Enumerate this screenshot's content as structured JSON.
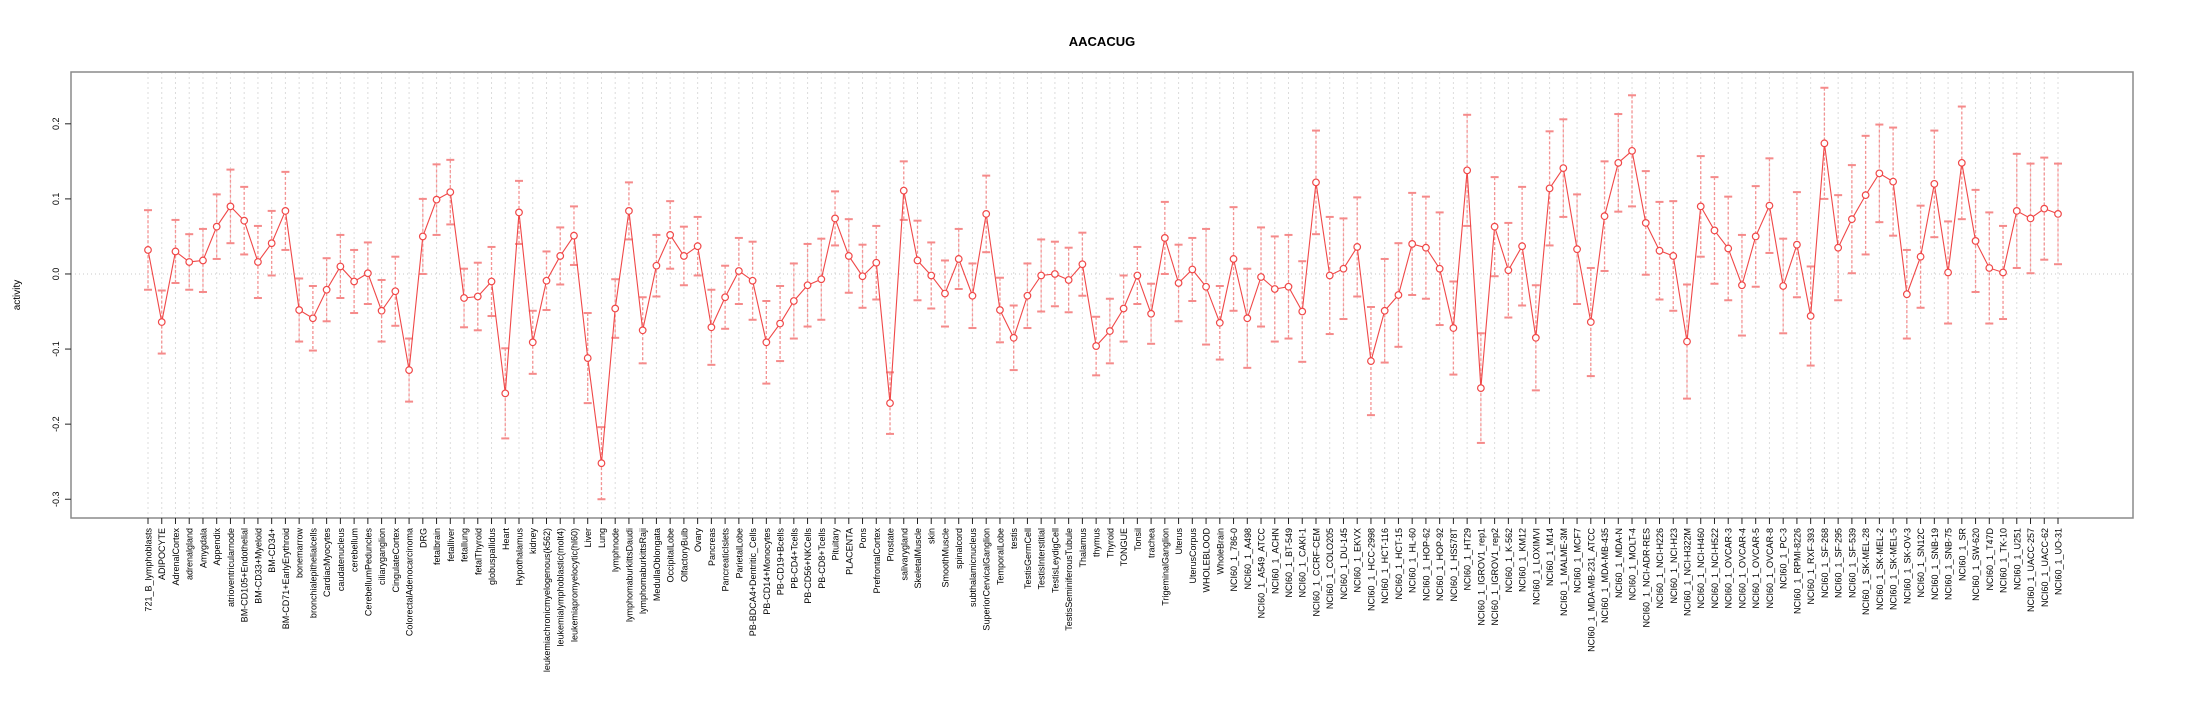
{
  "title": "AACACUG",
  "chart_data": {
    "type": "scatter",
    "subtype": "points-with-error-bars",
    "title": "AACACUG",
    "xlabel": "",
    "ylabel": "activity",
    "ylim": [
      -0.325,
      0.269
    ],
    "ytick_labels": [
      "0.2",
      "0.1",
      "0.0",
      "-0.1",
      "-0.2",
      "-0.3"
    ],
    "ytick_values": [
      0.2,
      0.1,
      0.0,
      -0.1,
      -0.2,
      -0.3
    ],
    "grid": "vertical-dashed-per-category",
    "zero_reference_line": true,
    "legend_position": "none",
    "colors": {
      "point": "#f04848",
      "connector_line": "#f04848",
      "error_bar_line": "#f58a8a",
      "error_bar_cap": "#f58a8a",
      "gridline": "#dcdcdc",
      "zero_line": "#c8c8c8",
      "frame": "#8a8a8a",
      "text": "#000000"
    },
    "points": [
      {
        "label": "721_B_lymphoblasts",
        "value": 0.032,
        "err": 0.053
      },
      {
        "label": "ADIPOCYTE",
        "value": -0.064,
        "err": 0.042
      },
      {
        "label": "AdrenalCortex",
        "value": 0.03,
        "err": 0.042
      },
      {
        "label": "adrenalgland",
        "value": 0.016,
        "err": 0.037
      },
      {
        "label": "Amygdala",
        "value": 0.018,
        "err": 0.042
      },
      {
        "label": "Appendix",
        "value": 0.063,
        "err": 0.043
      },
      {
        "label": "atrioventricularnode",
        "value": 0.09,
        "err": 0.049
      },
      {
        "label": "BM-CD105+Endothelial",
        "value": 0.071,
        "err": 0.045
      },
      {
        "label": "BM-CD33+Myeloid",
        "value": 0.016,
        "err": 0.048
      },
      {
        "label": "BM-CD34+",
        "value": 0.041,
        "err": 0.043
      },
      {
        "label": "BM-CD71+EarlyErythroid",
        "value": 0.084,
        "err": 0.052
      },
      {
        "label": "bonemarrow",
        "value": -0.048,
        "err": 0.042
      },
      {
        "label": "bronchialepithelialcells",
        "value": -0.059,
        "err": 0.043
      },
      {
        "label": "CardiacMyocytes",
        "value": -0.021,
        "err": 0.042
      },
      {
        "label": "caudatenucleus",
        "value": 0.01,
        "err": 0.042
      },
      {
        "label": "cerebellum",
        "value": -0.01,
        "err": 0.042
      },
      {
        "label": "CerebellumPeduncles",
        "value": 0.001,
        "err": 0.041
      },
      {
        "label": "ciliaryganglion",
        "value": -0.049,
        "err": 0.041
      },
      {
        "label": "CingulateCortex",
        "value": -0.023,
        "err": 0.046
      },
      {
        "label": "ColorectalAdenocarcinoma",
        "value": -0.128,
        "err": 0.042
      },
      {
        "label": "DRG",
        "value": 0.05,
        "err": 0.05
      },
      {
        "label": "fetalbrain",
        "value": 0.099,
        "err": 0.047
      },
      {
        "label": "fetalliver",
        "value": 0.109,
        "err": 0.043
      },
      {
        "label": "fetallung",
        "value": -0.032,
        "err": 0.039
      },
      {
        "label": "fetalThyroid",
        "value": -0.03,
        "err": 0.045
      },
      {
        "label": "globuspallidus",
        "value": -0.01,
        "err": 0.046
      },
      {
        "label": "Heart",
        "value": -0.159,
        "err": 0.06
      },
      {
        "label": "Hypothalamus",
        "value": 0.082,
        "err": 0.042
      },
      {
        "label": "kidney",
        "value": -0.091,
        "err": 0.042
      },
      {
        "label": "leukemiachronicmyelogenous(k562)",
        "value": -0.009,
        "err": 0.039
      },
      {
        "label": "leukemialymphoblastic(molt4)",
        "value": 0.024,
        "err": 0.038
      },
      {
        "label": "leukemiapromyelocytic(hl60)",
        "value": 0.051,
        "err": 0.039
      },
      {
        "label": "Liver",
        "value": -0.112,
        "err": 0.06
      },
      {
        "label": "Lung",
        "value": -0.252,
        "err": 0.048
      },
      {
        "label": "lymphnode",
        "value": -0.046,
        "err": 0.039
      },
      {
        "label": "lymphomaburkittsDaudi",
        "value": 0.084,
        "err": 0.038
      },
      {
        "label": "lymphomaburkittsRaji",
        "value": -0.075,
        "err": 0.044
      },
      {
        "label": "MedullaOblongata",
        "value": 0.011,
        "err": 0.041
      },
      {
        "label": "OccipitalLobe",
        "value": 0.052,
        "err": 0.045
      },
      {
        "label": "OlfactoryBulb",
        "value": 0.024,
        "err": 0.039
      },
      {
        "label": "Ovary",
        "value": 0.037,
        "err": 0.039
      },
      {
        "label": "Pancreas",
        "value": -0.071,
        "err": 0.05
      },
      {
        "label": "PancreaticIslets",
        "value": -0.031,
        "err": 0.042
      },
      {
        "label": "ParietalLobe",
        "value": 0.004,
        "err": 0.044
      },
      {
        "label": "PB-BDCA4+Dentritic_Cells",
        "value": -0.009,
        "err": 0.052
      },
      {
        "label": "PB-CD14+Monocytes",
        "value": -0.091,
        "err": 0.055
      },
      {
        "label": "PB-CD19+Bcells",
        "value": -0.066,
        "err": 0.05
      },
      {
        "label": "PB-CD4+Tcells",
        "value": -0.036,
        "err": 0.05
      },
      {
        "label": "PB-CD56+NKCells",
        "value": -0.015,
        "err": 0.055
      },
      {
        "label": "PB-CD8+Tcells",
        "value": -0.007,
        "err": 0.054
      },
      {
        "label": "Pituitary",
        "value": 0.074,
        "err": 0.036
      },
      {
        "label": "PLACENTA",
        "value": 0.024,
        "err": 0.049
      },
      {
        "label": "Pons",
        "value": -0.003,
        "err": 0.042
      },
      {
        "label": "PrefrontalCortex",
        "value": 0.015,
        "err": 0.049
      },
      {
        "label": "Prostate",
        "value": -0.172,
        "err": 0.041
      },
      {
        "label": "salivarygland",
        "value": 0.111,
        "err": 0.039
      },
      {
        "label": "SkeletalMuscle",
        "value": 0.018,
        "err": 0.053
      },
      {
        "label": "skin",
        "value": -0.002,
        "err": 0.044
      },
      {
        "label": "SmoothMuscle",
        "value": -0.026,
        "err": 0.044
      },
      {
        "label": "spinalcord",
        "value": 0.02,
        "err": 0.04
      },
      {
        "label": "subthalamicnucleus",
        "value": -0.029,
        "err": 0.043
      },
      {
        "label": "SuperiorCervicalGanglion",
        "value": 0.08,
        "err": 0.051
      },
      {
        "label": "TemporalLobe",
        "value": -0.048,
        "err": 0.043
      },
      {
        "label": "testis",
        "value": -0.085,
        "err": 0.043
      },
      {
        "label": "TestisGermCell",
        "value": -0.029,
        "err": 0.043
      },
      {
        "label": "TestisInterstitial",
        "value": -0.002,
        "err": 0.048
      },
      {
        "label": "TestisLeydigCell",
        "value": 0.0,
        "err": 0.043
      },
      {
        "label": "TestisSeminiferousTubule",
        "value": -0.008,
        "err": 0.043
      },
      {
        "label": "Thalamus",
        "value": 0.013,
        "err": 0.042
      },
      {
        "label": "thymus",
        "value": -0.096,
        "err": 0.039
      },
      {
        "label": "Thyroid",
        "value": -0.076,
        "err": 0.043
      },
      {
        "label": "TONGUE",
        "value": -0.046,
        "err": 0.044
      },
      {
        "label": "Tonsil",
        "value": -0.002,
        "err": 0.038
      },
      {
        "label": "trachea",
        "value": -0.053,
        "err": 0.04
      },
      {
        "label": "TrigeminalGanglion",
        "value": 0.048,
        "err": 0.048
      },
      {
        "label": "Uterus",
        "value": -0.012,
        "err": 0.051
      },
      {
        "label": "UterusCorpus",
        "value": 0.006,
        "err": 0.042
      },
      {
        "label": "WHOLEBLOOD",
        "value": -0.017,
        "err": 0.077
      },
      {
        "label": "WholeBrain",
        "value": -0.065,
        "err": 0.049
      },
      {
        "label": "NCI60_1_786-0",
        "value": 0.02,
        "err": 0.069
      },
      {
        "label": "NCI60_1_A498",
        "value": -0.059,
        "err": 0.066
      },
      {
        "label": "NCI60_1_A549_ATCC",
        "value": -0.004,
        "err": 0.066
      },
      {
        "label": "NCI60_1_ACHN",
        "value": -0.02,
        "err": 0.07
      },
      {
        "label": "NCI60_1_BT-549",
        "value": -0.017,
        "err": 0.069
      },
      {
        "label": "NCI60_1_CAKI-1",
        "value": -0.05,
        "err": 0.067
      },
      {
        "label": "NCI60_1_CCRF-CEM",
        "value": 0.122,
        "err": 0.069
      },
      {
        "label": "NCI60_1_COLO205",
        "value": -0.002,
        "err": 0.078
      },
      {
        "label": "NCI60_1_DU-145",
        "value": 0.007,
        "err": 0.067
      },
      {
        "label": "NCI60_1_EKVX",
        "value": 0.036,
        "err": 0.066
      },
      {
        "label": "NCI60_1_HCC-2998",
        "value": -0.116,
        "err": 0.072
      },
      {
        "label": "NCI60_1_HCT-116",
        "value": -0.049,
        "err": 0.069
      },
      {
        "label": "NCI60_1_HCT-15",
        "value": -0.028,
        "err": 0.069
      },
      {
        "label": "NCI60_1_HL-60",
        "value": 0.04,
        "err": 0.068
      },
      {
        "label": "NCI60_1_HOP-62",
        "value": 0.035,
        "err": 0.068
      },
      {
        "label": "NCI60_1_HOP-92",
        "value": 0.007,
        "err": 0.075
      },
      {
        "label": "NCI60_1_HS578T",
        "value": -0.072,
        "err": 0.062
      },
      {
        "label": "NCI60_1_HT29",
        "value": 0.138,
        "err": 0.074
      },
      {
        "label": "NCI60_1_IGROV1_rep1",
        "value": -0.152,
        "err": 0.073
      },
      {
        "label": "NCI60_1_IGROV1_rep2",
        "value": 0.063,
        "err": 0.066
      },
      {
        "label": "NCI60_1_K-562",
        "value": 0.005,
        "err": 0.063
      },
      {
        "label": "NCI60_1_KM12",
        "value": 0.037,
        "err": 0.079
      },
      {
        "label": "NCI60_1_LOXIMVI",
        "value": -0.085,
        "err": 0.07
      },
      {
        "label": "NCI60_1_M14",
        "value": 0.114,
        "err": 0.076
      },
      {
        "label": "NCI60_1_MALME-3M",
        "value": 0.141,
        "err": 0.065
      },
      {
        "label": "NCI60_1_MCF7",
        "value": 0.033,
        "err": 0.073
      },
      {
        "label": "NCI60_1_MDA-MB-231_ATCC",
        "value": -0.064,
        "err": 0.072
      },
      {
        "label": "NCI60_1_MDA-MB-435",
        "value": 0.077,
        "err": 0.073
      },
      {
        "label": "NCI60_1_MDA-N",
        "value": 0.148,
        "err": 0.065
      },
      {
        "label": "NCI60_1_MOLT-4",
        "value": 0.164,
        "err": 0.074
      },
      {
        "label": "NCI60_1_NCI-ADR-RES",
        "value": 0.068,
        "err": 0.069
      },
      {
        "label": "NCI60_1_NCI-H226",
        "value": 0.031,
        "err": 0.065
      },
      {
        "label": "NCI60_1_NCI-H23",
        "value": 0.024,
        "err": 0.073
      },
      {
        "label": "NCI60_1_NCI-H322M",
        "value": -0.09,
        "err": 0.076
      },
      {
        "label": "NCI60_1_NCI-H460",
        "value": 0.09,
        "err": 0.067
      },
      {
        "label": "NCI60_1_NCI-H522",
        "value": 0.058,
        "err": 0.071
      },
      {
        "label": "NCI60_1_OVCAR-3",
        "value": 0.034,
        "err": 0.069
      },
      {
        "label": "NCI60_1_OVCAR-4",
        "value": -0.015,
        "err": 0.067
      },
      {
        "label": "NCI60_1_OVCAR-5",
        "value": 0.05,
        "err": 0.067
      },
      {
        "label": "NCI60_1_OVCAR-8",
        "value": 0.091,
        "err": 0.063
      },
      {
        "label": "NCI60_1_PC-3",
        "value": -0.016,
        "err": 0.063
      },
      {
        "label": "NCI60_1_RPMI-8226",
        "value": 0.039,
        "err": 0.07
      },
      {
        "label": "NCI60_1_RXF-393",
        "value": -0.056,
        "err": 0.066
      },
      {
        "label": "NCI60_1_SF-268",
        "value": 0.174,
        "err": 0.074
      },
      {
        "label": "NCI60_1_SF-295",
        "value": 0.035,
        "err": 0.07
      },
      {
        "label": "NCI60_1_SF-539",
        "value": 0.073,
        "err": 0.072
      },
      {
        "label": "NCI60_1_SK-MEL-28",
        "value": 0.105,
        "err": 0.079
      },
      {
        "label": "NCI60_1_SK-MEL-2",
        "value": 0.134,
        "err": 0.065
      },
      {
        "label": "NCI60_1_SK-MEL-5",
        "value": 0.123,
        "err": 0.072
      },
      {
        "label": "NCI60_1_SK-OV-3",
        "value": -0.027,
        "err": 0.059
      },
      {
        "label": "NCI60_1_SN12C",
        "value": 0.023,
        "err": 0.068
      },
      {
        "label": "NCI60_1_SNB-19",
        "value": 0.12,
        "err": 0.071
      },
      {
        "label": "NCI60_1_SNB-75",
        "value": 0.002,
        "err": 0.068
      },
      {
        "label": "NCI60_1_SR",
        "value": 0.148,
        "err": 0.075
      },
      {
        "label": "NCI60_1_SW-620",
        "value": 0.044,
        "err": 0.068
      },
      {
        "label": "NCI60_1_T47D",
        "value": 0.008,
        "err": 0.074
      },
      {
        "label": "NCI60_1_TK-10",
        "value": 0.002,
        "err": 0.062
      },
      {
        "label": "NCI60_1_U251",
        "value": 0.084,
        "err": 0.076
      },
      {
        "label": "NCI60_1_UACC-257",
        "value": 0.074,
        "err": 0.073
      },
      {
        "label": "NCI60_1_UACC-62",
        "value": 0.087,
        "err": 0.068
      },
      {
        "label": "NCI60_1_UO-31",
        "value": 0.08,
        "err": 0.067
      }
    ]
  }
}
